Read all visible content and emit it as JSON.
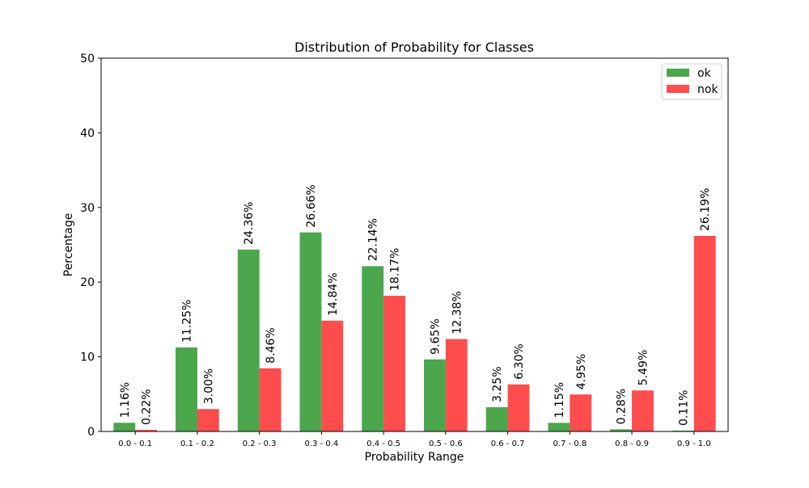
{
  "chart_data": {
    "type": "bar",
    "title": "Distribution of Probability for Classes",
    "xlabel": "Probability Range",
    "ylabel": "Percentage",
    "ylim": [
      0,
      50
    ],
    "yticks": [
      "0",
      "10",
      "20",
      "30",
      "40",
      "50"
    ],
    "categories": [
      "0.0 - 0.1",
      "0.1 - 0.2",
      "0.2 - 0.3",
      "0.3 - 0.4",
      "0.4 - 0.5",
      "0.5 - 0.6",
      "0.6 - 0.7",
      "0.7 - 0.8",
      "0.8 - 0.9",
      "0.9 - 1.0"
    ],
    "series": [
      {
        "name": "ok",
        "color": "#4ca64c",
        "values": [
          1.16,
          11.25,
          24.36,
          26.66,
          22.14,
          9.65,
          3.25,
          1.15,
          0.28,
          0.11
        ],
        "labels": [
          "1.16%",
          "11.25%",
          "24.36%",
          "26.66%",
          "22.14%",
          "9.65%",
          "3.25%",
          "1.15%",
          "0.28%",
          "0.11%"
        ]
      },
      {
        "name": "nok",
        "color": "#ff4c4c",
        "values": [
          0.22,
          3.0,
          8.46,
          14.84,
          18.17,
          12.38,
          6.3,
          4.95,
          5.49,
          26.19
        ],
        "labels": [
          "0.22%",
          "3.00%",
          "8.46%",
          "14.84%",
          "18.17%",
          "12.38%",
          "6.30%",
          "4.95%",
          "5.49%",
          "26.19%"
        ]
      }
    ],
    "legend_position": "top-right",
    "grid": false
  }
}
